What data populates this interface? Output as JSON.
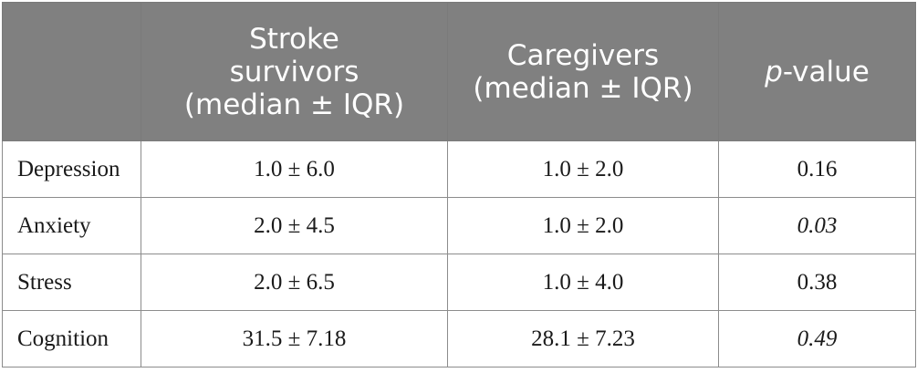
{
  "table": {
    "header": {
      "col1": "",
      "col2_lines": [
        "Stroke",
        "survivors",
        "(median ± IQR)"
      ],
      "col3_lines": [
        "Caregivers",
        "(median ± IQR)"
      ],
      "col4_p": "p",
      "col4_rest": "-value"
    },
    "rows": [
      {
        "label": "Depression",
        "survivors": "1.0 ± 6.0",
        "caregivers": "1.0 ± 2.0",
        "p_value": "0.16",
        "p_italic": false
      },
      {
        "label": "Anxiety",
        "survivors": "2.0 ± 4.5",
        "caregivers": "1.0 ± 2.0",
        "p_value": "0.03",
        "p_italic": true
      },
      {
        "label": "Stress",
        "survivors": "2.0 ± 6.5",
        "caregivers": "1.0 ± 4.0",
        "p_value": "0.38",
        "p_italic": false
      },
      {
        "label": "Cognition",
        "survivors": "31.5 ± 7.18",
        "caregivers": "28.1 ± 7.23",
        "p_value": "0.49",
        "p_italic": true
      }
    ]
  },
  "colors": {
    "header_bg": "#808080",
    "header_text": "#ffffff",
    "grid": "#8c8c8c"
  }
}
